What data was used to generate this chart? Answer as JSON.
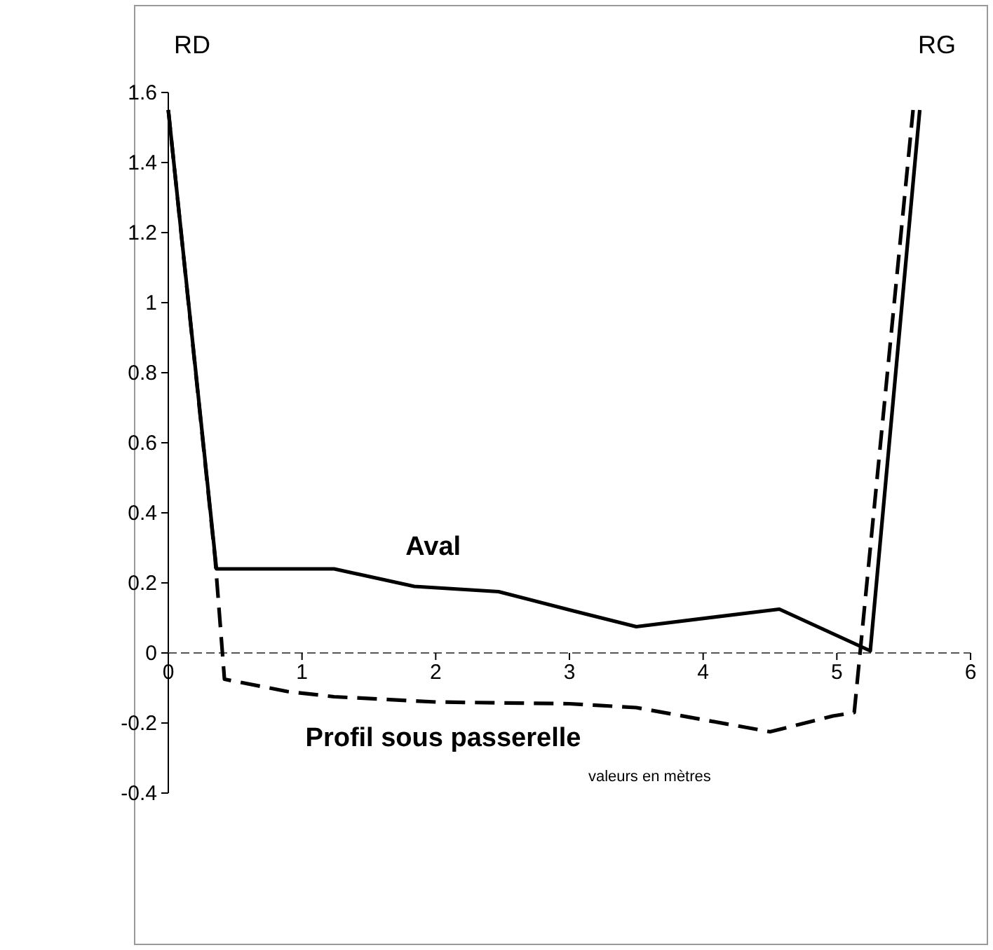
{
  "chart_data": {
    "type": "line",
    "xlabel": "valeurs en mètres",
    "annotations": [
      "RD",
      "RG"
    ],
    "xlim": [
      0,
      6
    ],
    "xticks": [
      0,
      1,
      2,
      3,
      4,
      5,
      6
    ],
    "ylim": [
      -0.4,
      1.6
    ],
    "yticks": [
      -0.4,
      -0.2,
      0,
      0.2,
      0.4,
      0.6,
      0.8,
      1,
      1.2,
      1.4,
      1.6
    ],
    "legend": false,
    "marker": "none",
    "series": [
      {
        "name": "Aval",
        "color": "#000000",
        "line_style": "solid",
        "x": [
          0,
          0.36,
          1.24,
          1.84,
          2.47,
          3.03,
          3.5,
          4.57,
          5.25,
          5.62
        ],
        "values": [
          1.55,
          0.24,
          0.24,
          0.19,
          0.175,
          0.12,
          0.075,
          0.125,
          0.006,
          1.55
        ]
      },
      {
        "name": "Profil sous passerelle",
        "color": "#000000",
        "line_style": "dashed",
        "x": [
          0,
          0.35,
          0.42,
          0.89,
          1.24,
          2,
          3,
          3.5,
          4.5,
          4.97,
          5.13,
          5.57
        ],
        "values": [
          1.55,
          0.27,
          -0.075,
          -0.11,
          -0.125,
          -0.14,
          -0.145,
          -0.156,
          -0.225,
          -0.18,
          -0.17,
          1.55
        ]
      }
    ]
  }
}
